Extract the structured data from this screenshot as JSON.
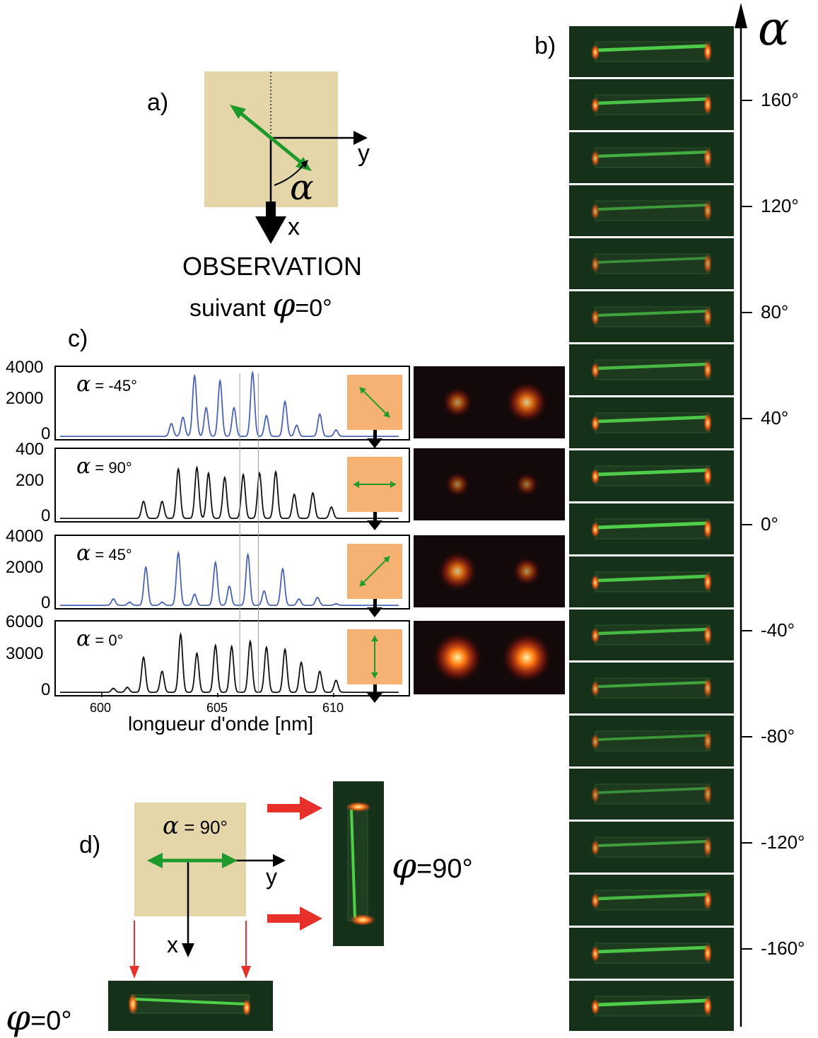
{
  "panel_a": {
    "label": "a)",
    "axis_y": "y",
    "axis_x": "x",
    "angle_symbol": "α",
    "observation": "OBSERVATION",
    "suivant": "suivant",
    "phi_symbol": "φ",
    "phi_value": "=0°"
  },
  "panel_b": {
    "label": "b)",
    "axis_symbol": "α",
    "ticks": [
      "160°",
      "120°",
      "80°",
      "40°",
      "0°",
      "-40°",
      "-80°",
      "-120°",
      "-160°"
    ],
    "frames": [
      {
        "alpha": 180,
        "intensity": 0.95
      },
      {
        "alpha": 160,
        "intensity": 0.85
      },
      {
        "alpha": 140,
        "intensity": 0.65
      },
      {
        "alpha": 120,
        "intensity": 0.45
      },
      {
        "alpha": 100,
        "intensity": 0.35
      },
      {
        "alpha": 80,
        "intensity": 0.55
      },
      {
        "alpha": 60,
        "intensity": 0.75
      },
      {
        "alpha": 40,
        "intensity": 0.9
      },
      {
        "alpha": 20,
        "intensity": 0.95
      },
      {
        "alpha": 0,
        "intensity": 1.0
      },
      {
        "alpha": -20,
        "intensity": 0.9
      },
      {
        "alpha": -40,
        "intensity": 0.75
      },
      {
        "alpha": -60,
        "intensity": 0.55
      },
      {
        "alpha": -80,
        "intensity": 0.4
      },
      {
        "alpha": -100,
        "intensity": 0.35
      },
      {
        "alpha": -120,
        "intensity": 0.5
      },
      {
        "alpha": -140,
        "intensity": 0.75
      },
      {
        "alpha": -160,
        "intensity": 0.9
      },
      {
        "alpha": -180,
        "intensity": 0.95
      }
    ]
  },
  "panel_c": {
    "label": "c)",
    "xlabel": "longueur d'onde  [nm]",
    "x_ticks": [
      "600",
      "605",
      "610"
    ],
    "rows": [
      {
        "alpha_text": "= -45°",
        "y_ticks": [
          "4000",
          "2000",
          "0"
        ],
        "color": "#4a64b4",
        "polarization_deg": -45,
        "spot_left": 0.45,
        "spot_right": 0.75
      },
      {
        "alpha_text": "= 90°",
        "y_ticks": [
          "400",
          "200",
          "0"
        ],
        "color": "#111111",
        "polarization_deg": 0,
        "spot_left": 0.3,
        "spot_right": 0.25
      },
      {
        "alpha_text": "= 45°",
        "y_ticks": [
          "4000",
          "2000",
          "0"
        ],
        "color": "#4a64b4",
        "polarization_deg": 45,
        "spot_left": 0.7,
        "spot_right": 0.4
      },
      {
        "alpha_text": "= 0°",
        "y_ticks": [
          "6000",
          "3000",
          "0"
        ],
        "color": "#111111",
        "polarization_deg": 90,
        "spot_left": 1.0,
        "spot_right": 1.0
      }
    ]
  },
  "chart_data": [
    {
      "type": "line",
      "title": "α = -45°",
      "xlabel": "longueur d'onde  [nm]",
      "xlim": [
        598,
        613
      ],
      "ylim": [
        0,
        4000
      ],
      "x": [
        603.0,
        603.5,
        604.0,
        604.5,
        605.1,
        605.7,
        606.5,
        607.1,
        607.9,
        608.4,
        609.4,
        610.1
      ],
      "values": [
        800,
        1200,
        3800,
        1800,
        3500,
        1800,
        4000,
        1300,
        2200,
        700,
        1400,
        400
      ]
    },
    {
      "type": "line",
      "title": "α = 90°",
      "xlabel": "longueur d'onde  [nm]",
      "xlim": [
        598,
        613
      ],
      "ylim": [
        0,
        450
      ],
      "x": [
        601.8,
        602.6,
        603.3,
        604.1,
        604.6,
        605.3,
        606.1,
        606.8,
        607.5,
        608.3,
        609.1,
        609.9
      ],
      "values": [
        120,
        120,
        350,
        360,
        320,
        290,
        310,
        320,
        330,
        170,
        180,
        80
      ]
    },
    {
      "type": "line",
      "title": "α = 45°",
      "xlabel": "longueur d'onde  [nm]",
      "xlim": [
        598,
        613
      ],
      "ylim": [
        0,
        4000
      ],
      "x": [
        600.5,
        601.2,
        601.9,
        602.6,
        603.3,
        604.0,
        604.9,
        605.5,
        606.3,
        607.0,
        607.8,
        608.5,
        609.3,
        610.1
      ],
      "values": [
        400,
        200,
        2400,
        200,
        3300,
        700,
        2700,
        1200,
        3200,
        900,
        2300,
        400,
        500,
        100
      ]
    },
    {
      "type": "line",
      "title": "α = 0°",
      "xlabel": "longueur d'onde  [nm]",
      "xlim": [
        598,
        613
      ],
      "ylim": [
        0,
        6500
      ],
      "x": [
        600.5,
        601.1,
        601.8,
        602.6,
        603.4,
        604.1,
        604.9,
        605.6,
        606.4,
        607.1,
        607.9,
        608.6,
        609.4,
        610.1
      ],
      "values": [
        400,
        500,
        3500,
        2100,
        5800,
        3900,
        4700,
        4600,
        5100,
        4500,
        4300,
        3000,
        2100,
        1200
      ]
    }
  ],
  "panel_d": {
    "label": "d)",
    "alpha_symbol": "α",
    "alpha_text": "= 90°",
    "axis_y": "y",
    "axis_x": "x",
    "phi90_symbol": "φ",
    "phi90_value": "=90°",
    "phi0_symbol": "φ",
    "phi0_value": "=0°"
  },
  "colors": {
    "tan": "#e4d6a8",
    "orange": "#f6b272",
    "green_arrow": "#1e9a2a",
    "red_arrow": "#e8302a",
    "frame_bg": "#16311a",
    "fiber_green": "#4fd04a",
    "end_red": "#ff5a1a"
  }
}
